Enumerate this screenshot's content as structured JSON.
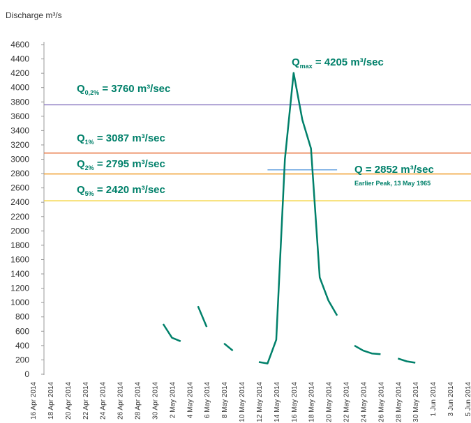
{
  "chart_data": {
    "type": "line",
    "y_label": "Discharge m³/s",
    "ylim": [
      0,
      4600
    ],
    "yticks": [
      0,
      200,
      400,
      600,
      800,
      1000,
      1200,
      1400,
      1600,
      1800,
      2000,
      2200,
      2400,
      2600,
      2800,
      3000,
      3200,
      3400,
      3600,
      3800,
      4000,
      4200,
      4400,
      4600
    ],
    "xlim": [
      "2014-04-16",
      "2014-06-05"
    ],
    "xticks": [
      {
        "value": "2014-04-16",
        "label": "16 Apr 2014"
      },
      {
        "value": "2014-04-18",
        "label": "18 Apr 2014"
      },
      {
        "value": "2014-04-20",
        "label": "20 Apr 2014"
      },
      {
        "value": "2014-04-22",
        "label": "22 Apr 2014"
      },
      {
        "value": "2014-04-24",
        "label": "24 Apr 2014"
      },
      {
        "value": "2014-04-26",
        "label": "26 Apr 2014"
      },
      {
        "value": "2014-04-28",
        "label": "28 Apr 2014"
      },
      {
        "value": "2014-04-30",
        "label": "30 Apr 2014"
      },
      {
        "value": "2014-05-02",
        "label": "2 May 2014"
      },
      {
        "value": "2014-05-04",
        "label": "4 May 2014"
      },
      {
        "value": "2014-05-06",
        "label": "6 May 2014"
      },
      {
        "value": "2014-05-08",
        "label": "8 May 2014"
      },
      {
        "value": "2014-05-10",
        "label": "10 May 2014"
      },
      {
        "value": "2014-05-12",
        "label": "12 May 2014"
      },
      {
        "value": "2014-05-14",
        "label": "14 May 2014"
      },
      {
        "value": "2014-05-16",
        "label": "16 May 2014"
      },
      {
        "value": "2014-05-18",
        "label": "18 May 2014"
      },
      {
        "value": "2014-05-20",
        "label": "20 May 2014"
      },
      {
        "value": "2014-05-22",
        "label": "22 May 2014"
      },
      {
        "value": "2014-05-24",
        "label": "24 May 2014"
      },
      {
        "value": "2014-05-26",
        "label": "26 May 2014"
      },
      {
        "value": "2014-05-28",
        "label": "28 May 2014"
      },
      {
        "value": "2014-05-30",
        "label": "30 May 2014"
      },
      {
        "value": "2014-06-01",
        "label": "1 Jun 2014"
      },
      {
        "value": "2014-06-03",
        "label": "3 Jun 2014"
      },
      {
        "value": "2014-06-05",
        "label": "5 Jun 2014"
      }
    ],
    "x": [
      "2014-05-01",
      "2014-05-02",
      "2014-05-03",
      "2014-05-04",
      "2014-05-05",
      "2014-05-06",
      "2014-05-07",
      "2014-05-08",
      "2014-05-09",
      "2014-05-10",
      "2014-05-11",
      "2014-05-12",
      "2014-05-13",
      "2014-05-14",
      "2014-05-15",
      "2014-05-16",
      "2014-05-17",
      "2014-05-18",
      "2014-05-19",
      "2014-05-20",
      "2014-05-21",
      "2014-05-22",
      "2014-05-23",
      "2014-05-24",
      "2014-05-25",
      "2014-05-26",
      "2014-05-27",
      "2014-05-28",
      "2014-05-29",
      "2014-05-30"
    ],
    "series": [
      {
        "color": "#00806a",
        "values": [
          700,
          510,
          460,
          null,
          950,
          660,
          null,
          430,
          330,
          null,
          null,
          170,
          150,
          480,
          3000,
          4205,
          3550,
          3150,
          1350,
          1030,
          820,
          null,
          400,
          330,
          290,
          280,
          null,
          220,
          180,
          160
        ]
      }
    ],
    "reference_lines": [
      {
        "symbol": "Q",
        "sub": "0,2%",
        "text": " = 3760 m³/sec",
        "value": 3760,
        "color": "#8e7cc3"
      },
      {
        "symbol": "Q",
        "sub": "1%",
        "text": " = 3087 m³/sec",
        "value": 3087,
        "color": "#e8703a"
      },
      {
        "symbol": "Q",
        "sub": "2%",
        "text": " = 2795 m³/sec",
        "value": 2795,
        "color": "#f0a030"
      },
      {
        "symbol": "Q",
        "sub": "5%",
        "text": " = 2420 m³/sec",
        "value": 2420,
        "color": "#f5d547"
      }
    ],
    "peak": {
      "symbol": "Q",
      "sub": "max",
      "text": " = 4205 m³/sec",
      "value": 4205
    },
    "earlier_peak": {
      "text": "Q = 2852 m³/sec",
      "note": "Earlier Peak, 13 May 1965",
      "value": 2852,
      "x": [
        "2014-05-13",
        "2014-05-21"
      ],
      "color": "#4a90d9"
    }
  }
}
